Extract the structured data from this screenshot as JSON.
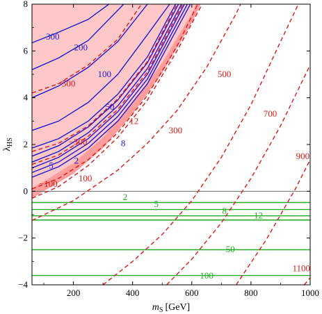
{
  "chart_data": {
    "type": "line",
    "title": "",
    "xlabel_var": "m",
    "xlabel_sub": "S",
    "xlabel_unit": "[GeV]",
    "ylabel_var": "λ",
    "ylabel_sub": "HS",
    "xlim": [
      60,
      1000
    ],
    "ylim": [
      -4,
      8
    ],
    "x_ticks": [
      200,
      400,
      600,
      800,
      1000
    ],
    "y_ticks": [
      -4,
      -2,
      0,
      2,
      4,
      6,
      8
    ],
    "y_tick_labels": [
      "−4",
      "−2",
      "0",
      "2",
      "4",
      "6",
      "8"
    ],
    "colors": {
      "blue": "#1a1ad0",
      "red": "#e01818",
      "green": "#22aa22",
      "shade_light": "#ffc8c8",
      "shade_dark": "#ff9d9d",
      "zero_line": "#666666"
    },
    "shaded_region": {
      "boundary": [
        [
          60,
          0.15
        ],
        [
          100,
          0.42
        ],
        [
          200,
          1.2
        ],
        [
          300,
          2.3
        ],
        [
          400,
          3.75
        ],
        [
          500,
          5.5
        ],
        [
          600,
          7.6
        ],
        [
          615,
          8.0
        ]
      ],
      "dark_band": [
        [
          60,
          -0.3
        ],
        [
          100,
          0.0
        ],
        [
          200,
          0.75
        ],
        [
          300,
          1.85
        ],
        [
          400,
          3.3
        ],
        [
          500,
          5.05
        ],
        [
          600,
          7.2
        ],
        [
          630,
          8.0
        ]
      ]
    },
    "blue_series": [
      {
        "label": "300",
        "label_xy": [
          130,
          6.6
        ],
        "points": [
          [
            60,
            6.35
          ],
          [
            150,
            6.8
          ],
          [
            250,
            7.35
          ],
          [
            320,
            8.0
          ]
        ]
      },
      {
        "label": "200",
        "label_xy": [
          225,
          6.15
        ],
        "points": [
          [
            60,
            5.2
          ],
          [
            150,
            5.7
          ],
          [
            250,
            6.45
          ],
          [
            370,
            8.0
          ]
        ]
      },
      {
        "label": "100",
        "label_xy": [
          305,
          5.0
        ],
        "points": [
          [
            60,
            4.0
          ],
          [
            150,
            4.5
          ],
          [
            250,
            5.3
          ],
          [
            350,
            6.4
          ],
          [
            450,
            8.0
          ]
        ]
      },
      {
        "label": "50",
        "label_xy": [
          323,
          3.6
        ],
        "points": [
          [
            60,
            2.6
          ],
          [
            150,
            3.0
          ],
          [
            250,
            3.8
          ],
          [
            350,
            5.0
          ],
          [
            450,
            6.7
          ],
          [
            525,
            8.0
          ]
        ]
      },
      {
        "label": "",
        "points": [
          [
            60,
            1.85
          ],
          [
            150,
            2.25
          ],
          [
            250,
            3.0
          ],
          [
            350,
            4.15
          ],
          [
            450,
            5.75
          ],
          [
            545,
            8.0
          ]
        ]
      },
      {
        "label": "8",
        "label_xy": [
          368,
          2.05
        ],
        "points": [
          [
            60,
            1.5
          ],
          [
            150,
            1.95
          ],
          [
            250,
            2.75
          ],
          [
            350,
            3.9
          ],
          [
            450,
            5.5
          ],
          [
            555,
            8.0
          ]
        ]
      },
      {
        "label": "",
        "points": [
          [
            60,
            1.25
          ],
          [
            150,
            1.7
          ],
          [
            250,
            2.5
          ],
          [
            350,
            3.65
          ],
          [
            450,
            5.25
          ],
          [
            565,
            8.0
          ]
        ]
      },
      {
        "label": "2",
        "label_xy": [
          210,
          1.3
        ],
        "points": [
          [
            60,
            1.0
          ],
          [
            150,
            1.45
          ],
          [
            250,
            2.25
          ],
          [
            350,
            3.4
          ],
          [
            450,
            5.0
          ],
          [
            575,
            8.0
          ]
        ]
      },
      {
        "label": "5",
        "label_xy": [
          125,
          1.1
        ],
        "points": [
          [
            60,
            0.8
          ],
          [
            150,
            1.25
          ],
          [
            250,
            2.05
          ],
          [
            350,
            3.2
          ],
          [
            450,
            4.8
          ],
          [
            585,
            8.0
          ]
        ]
      },
      {
        "label": "",
        "points": [
          [
            60,
            0.6
          ],
          [
            150,
            1.05
          ],
          [
            250,
            1.85
          ],
          [
            350,
            3.0
          ],
          [
            450,
            4.6
          ],
          [
            595,
            8.0
          ]
        ]
      }
    ],
    "red_series": [
      {
        "label": "−500",
        "label_xy": [
          175,
          4.6
        ],
        "points": [
          [
            60,
            4.2
          ],
          [
            150,
            4.6
          ],
          [
            250,
            5.4
          ],
          [
            350,
            6.5
          ],
          [
            430,
            8.0
          ]
        ]
      },
      {
        "label": "12",
        "label_xy": [
          405,
          3.0
        ],
        "points": [
          [
            60,
            1.7
          ],
          [
            150,
            2.05
          ],
          [
            250,
            2.8
          ],
          [
            350,
            3.95
          ],
          [
            450,
            5.55
          ],
          [
            550,
            8.0
          ]
        ]
      },
      {
        "label": "−300",
        "label_xy": [
          215,
          2.1
        ],
        "points": [
          [
            60,
            1.15
          ],
          [
            150,
            1.55
          ],
          [
            250,
            2.35
          ],
          [
            350,
            3.5
          ],
          [
            450,
            5.1
          ],
          [
            570,
            8.0
          ]
        ]
      },
      {
        "label": "−100",
        "label_xy": [
          115,
          0.3
        ],
        "points": [
          [
            60,
            0.1
          ],
          [
            150,
            0.55
          ],
          [
            250,
            1.35
          ],
          [
            350,
            2.5
          ],
          [
            450,
            4.1
          ],
          [
            550,
            6.2
          ],
          [
            620,
            8.0
          ]
        ]
      },
      {
        "label": "100",
        "label_xy": [
          240,
          0.55
        ],
        "points": [
          [
            60,
            -0.3
          ],
          [
            150,
            0.2
          ],
          [
            250,
            1.1
          ],
          [
            350,
            2.3
          ],
          [
            450,
            3.9
          ],
          [
            550,
            6.0
          ],
          [
            635,
            8.0
          ]
        ]
      },
      {
        "label": "300",
        "label_xy": [
          545,
          2.6
        ],
        "points": [
          [
            60,
            -1.25
          ],
          [
            200,
            -0.4
          ],
          [
            350,
            0.9
          ],
          [
            450,
            2.05
          ],
          [
            550,
            3.45
          ],
          [
            650,
            5.3
          ],
          [
            750,
            7.6
          ],
          [
            765,
            8.0
          ]
        ]
      },
      {
        "label": "500",
        "label_xy": [
          710,
          5.0
        ],
        "points": [
          [
            300,
            -4.0
          ],
          [
            400,
            -3.0
          ],
          [
            500,
            -1.85
          ],
          [
            600,
            -0.4
          ],
          [
            700,
            1.45
          ],
          [
            800,
            3.7
          ],
          [
            900,
            6.4
          ],
          [
            960,
            8.0
          ]
        ]
      },
      {
        "label": "700",
        "label_xy": [
          865,
          3.3
        ],
        "points": [
          [
            515,
            -4.0
          ],
          [
            600,
            -2.9
          ],
          [
            700,
            -1.35
          ],
          [
            800,
            0.55
          ],
          [
            900,
            2.8
          ],
          [
            1000,
            5.4
          ]
        ]
      },
      {
        "label": "900",
        "label_xy": [
          975,
          1.5
        ],
        "points": [
          [
            750,
            -4.0
          ],
          [
            850,
            -2.1
          ],
          [
            950,
            0.1
          ],
          [
            1000,
            1.35
          ]
        ]
      },
      {
        "label": "1100",
        "label_xy": [
          970,
          -3.3
        ],
        "points": [
          [
            980,
            -4.0
          ],
          [
            1000,
            -3.7
          ]
        ]
      }
    ],
    "green_series": [
      {
        "label": "2",
        "label_xy": [
          375,
          -0.25
        ],
        "y": -0.48
      },
      {
        "label": "5",
        "label_xy": [
          480,
          -0.55
        ],
        "y": -0.78
      },
      {
        "label": "8",
        "label_xy": [
          710,
          -0.85
        ],
        "y": -1.05
      },
      {
        "label": "12",
        "label_xy": [
          825,
          -1.05
        ],
        "y": -1.23
      },
      {
        "label": "50",
        "label_xy": [
          730,
          -2.48
        ],
        "y": -2.5
      },
      {
        "label": "100",
        "label_xy": [
          650,
          -3.62
        ],
        "y": -3.6
      }
    ]
  }
}
